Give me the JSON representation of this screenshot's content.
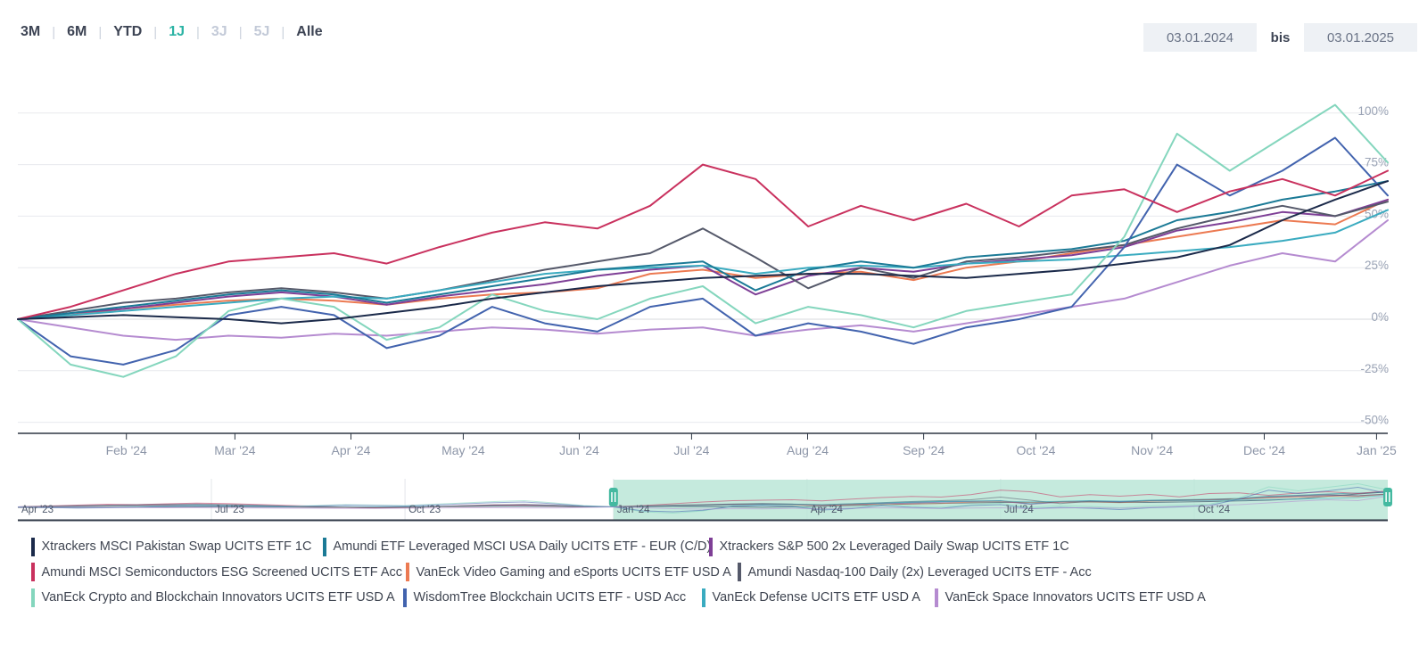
{
  "toolbar": {
    "ranges": [
      {
        "label": "3M",
        "state": "normal"
      },
      {
        "label": "6M",
        "state": "normal"
      },
      {
        "label": "YTD",
        "state": "normal"
      },
      {
        "label": "1J",
        "state": "active"
      },
      {
        "label": "3J",
        "state": "disabled"
      },
      {
        "label": "5J",
        "state": "disabled"
      },
      {
        "label": "Alle",
        "state": "normal"
      }
    ],
    "from_date": "03.01.2024",
    "range_separator_label": "bis",
    "to_date": "03.01.2025"
  },
  "chart_data": {
    "type": "line",
    "title": "",
    "unit": "percent",
    "x_start": "03.01.2024",
    "x_end": "03.01.2025",
    "x_resolution": "biweekly (27 points Jan '24 - Jan '25, values estimated from gridlines)",
    "ylim": [
      -50,
      100
    ],
    "grid": true,
    "y_ticks": [
      {
        "value": 100,
        "label": "100%"
      },
      {
        "value": 75,
        "label": "75%"
      },
      {
        "value": 50,
        "label": "50%"
      },
      {
        "value": 25,
        "label": "25%"
      },
      {
        "value": 0,
        "label": "0%"
      },
      {
        "value": -25,
        "label": "-25%"
      },
      {
        "value": -50,
        "label": "-50%"
      }
    ],
    "x_tick_labels": [
      "Feb '24",
      "Mar '24",
      "Apr '24",
      "May '24",
      "Jun '24",
      "Jul '24",
      "Aug '24",
      "Sep '24",
      "Oct '24",
      "Nov '24",
      "Dec '24",
      "Jan '25"
    ],
    "series": [
      {
        "id": "pakistan",
        "name": "Xtrackers MSCI Pakistan Swap UCITS ETF 1C",
        "color": "#1b2a4a",
        "values": [
          0,
          1,
          2,
          1,
          0,
          -2,
          0,
          3,
          6,
          10,
          13,
          16,
          18,
          20,
          21,
          22,
          22,
          21,
          20,
          22,
          24,
          27,
          30,
          36,
          48,
          58,
          67
        ]
      },
      {
        "id": "levusa",
        "name": "Amundi ETF Leveraged MSCI USA Daily UCITS ETF - EUR (C/D)",
        "color": "#1b7a96",
        "values": [
          0,
          3,
          6,
          9,
          12,
          14,
          12,
          8,
          12,
          16,
          20,
          24,
          26,
          28,
          14,
          24,
          28,
          25,
          30,
          32,
          34,
          38,
          48,
          52,
          58,
          62,
          67
        ]
      },
      {
        "id": "sp2x",
        "name": "Xtrackers S&P 500 2x Leveraged Daily Swap UCITS ETF 1C",
        "color": "#7e3f96",
        "values": [
          0,
          3,
          5,
          8,
          11,
          13,
          11,
          7,
          11,
          14,
          17,
          21,
          24,
          26,
          12,
          21,
          25,
          23,
          27,
          29,
          31,
          35,
          43,
          47,
          52,
          50,
          58
        ]
      },
      {
        "id": "semis",
        "name": "Amundi MSCI Semiconductors ESG Screened UCITS ETF Acc",
        "color": "#c9315e",
        "values": [
          0,
          6,
          14,
          22,
          28,
          30,
          32,
          27,
          35,
          42,
          47,
          44,
          55,
          75,
          68,
          45,
          55,
          48,
          56,
          45,
          60,
          63,
          52,
          62,
          68,
          60,
          72
        ]
      },
      {
        "id": "gaming",
        "name": "VanEck Video Gaming and eSports UCITS ETF USD A",
        "color": "#ec7a52",
        "values": [
          0,
          2,
          5,
          7,
          9,
          10,
          9,
          7,
          10,
          12,
          13,
          15,
          22,
          24,
          20,
          22,
          23,
          19,
          25,
          28,
          32,
          36,
          40,
          44,
          48,
          46,
          58
        ]
      },
      {
        "id": "nasdaq2x",
        "name": "Amundi Nasdaq-100 Daily (2x) Leveraged UCITS ETF - Acc",
        "color": "#55596a",
        "values": [
          0,
          4,
          8,
          10,
          13,
          15,
          13,
          10,
          14,
          19,
          24,
          28,
          32,
          44,
          30,
          15,
          25,
          20,
          28,
          30,
          33,
          36,
          44,
          50,
          55,
          50,
          57
        ]
      },
      {
        "id": "crypto",
        "name": "VanEck Crypto and Blockchain Innovators UCITS ETF USD A",
        "color": "#84d6bd",
        "values": [
          0,
          -22,
          -28,
          -18,
          4,
          10,
          6,
          -10,
          -4,
          12,
          4,
          0,
          10,
          16,
          -2,
          6,
          2,
          -4,
          4,
          8,
          12,
          40,
          90,
          72,
          88,
          104,
          76
        ]
      },
      {
        "id": "wisdomtree",
        "name": "WisdomTree Blockchain UCITS ETF - USD Acc",
        "color": "#4263ae",
        "values": [
          0,
          -18,
          -22,
          -15,
          2,
          6,
          2,
          -14,
          -8,
          6,
          -2,
          -6,
          6,
          10,
          -8,
          -2,
          -6,
          -12,
          -4,
          0,
          6,
          35,
          75,
          60,
          72,
          88,
          60
        ]
      },
      {
        "id": "defense",
        "name": "VanEck Defense UCITS ETF USD A",
        "color": "#3aabc0",
        "values": [
          0,
          2,
          4,
          6,
          8,
          10,
          11,
          10,
          14,
          18,
          22,
          24,
          25,
          26,
          22,
          25,
          26,
          25,
          27,
          28,
          29,
          31,
          33,
          35,
          38,
          42,
          53
        ]
      },
      {
        "id": "space",
        "name": "VanEck Space Innovators UCITS ETF USD A",
        "color": "#b58bd0",
        "values": [
          0,
          -4,
          -8,
          -10,
          -8,
          -9,
          -7,
          -8,
          -6,
          -4,
          -5,
          -7,
          -5,
          -4,
          -8,
          -5,
          -3,
          -6,
          -2,
          2,
          6,
          10,
          18,
          26,
          32,
          28,
          48
        ]
      }
    ]
  },
  "navigator": {
    "labels": [
      "Apr '23",
      "Jul '23",
      "Oct '23",
      "Jan '24",
      "Apr '24",
      "Jul '24",
      "Oct '24"
    ],
    "selected_from_label": "Jan '24",
    "selection_color": "#b6e5d5",
    "handle_color": "#44b9a0",
    "pre_values": {
      "pakistan": [
        -3,
        -3,
        -2,
        -2,
        -1,
        -1,
        0,
        0,
        -1,
        -1,
        -2,
        -2,
        -1,
        0,
        1,
        1,
        2,
        2,
        1,
        0
      ],
      "levusa": [
        0,
        2,
        4,
        6,
        8,
        9,
        10,
        8,
        6,
        3,
        1,
        -1,
        -3,
        -1,
        2,
        5,
        8,
        10,
        7,
        2
      ],
      "sp2x": [
        0,
        2,
        4,
        5,
        7,
        8,
        9,
        7,
        5,
        2,
        0,
        -2,
        -4,
        -2,
        1,
        4,
        7,
        9,
        6,
        1
      ],
      "semis": [
        0,
        4,
        8,
        12,
        10,
        14,
        17,
        15,
        11,
        7,
        3,
        -1,
        -4,
        -2,
        2,
        6,
        9,
        7,
        3,
        0
      ],
      "gaming": [
        0,
        1,
        3,
        4,
        5,
        6,
        6,
        5,
        3,
        1,
        0,
        -2,
        -3,
        -2,
        0,
        2,
        4,
        5,
        3,
        1
      ],
      "nasdaq2x": [
        0,
        3,
        6,
        8,
        10,
        12,
        13,
        11,
        8,
        4,
        1,
        -2,
        -5,
        -3,
        1,
        5,
        9,
        11,
        8,
        2
      ],
      "crypto": [
        0,
        -3,
        -5,
        -3,
        0,
        4,
        8,
        6,
        4,
        2,
        6,
        10,
        8,
        6,
        12,
        18,
        24,
        28,
        18,
        6
      ],
      "wisdomtree": [
        0,
        -3,
        -5,
        -4,
        -2,
        2,
        5,
        4,
        2,
        0,
        4,
        8,
        6,
        4,
        9,
        14,
        19,
        22,
        14,
        4
      ],
      "defense": [
        0,
        1,
        2,
        3,
        4,
        4,
        5,
        4,
        3,
        2,
        2,
        1,
        0,
        1,
        2,
        3,
        4,
        4,
        3,
        1
      ],
      "space": [
        0,
        -1,
        -2,
        -3,
        -3,
        -4,
        -4,
        -5,
        -5,
        -6,
        -6,
        -7,
        -7,
        -6,
        -5,
        -4,
        -4,
        -5,
        -5,
        -3
      ]
    }
  }
}
